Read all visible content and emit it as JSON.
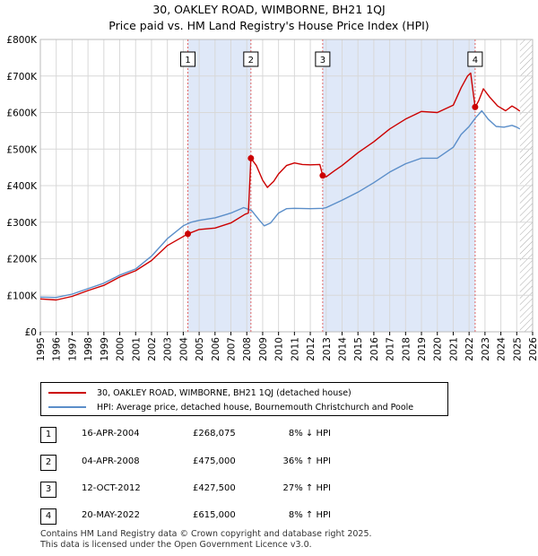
{
  "title": "30, OAKLEY ROAD, WIMBORNE, BH21 1QJ",
  "subtitle": "Price paid vs. HM Land Registry's House Price Index (HPI)",
  "colors": {
    "property": "#cc0000",
    "hpi": "#5b8ec9",
    "shade": "#dfe8f8",
    "hatch": "#aaaaaa"
  },
  "chart_data": {
    "type": "line",
    "title": "30, OAKLEY ROAD, WIMBORNE, BH21 1QJ",
    "xlim": [
      1995,
      2026
    ],
    "ylim": [
      0,
      800000
    ],
    "y_ticks": [
      {
        "value": 0,
        "label": "£0"
      },
      {
        "value": 100000,
        "label": "£100K"
      },
      {
        "value": 200000,
        "label": "£200K"
      },
      {
        "value": 300000,
        "label": "£300K"
      },
      {
        "value": 400000,
        "label": "£400K"
      },
      {
        "value": 500000,
        "label": "£500K"
      },
      {
        "value": 600000,
        "label": "£600K"
      },
      {
        "value": 700000,
        "label": "£700K"
      },
      {
        "value": 800000,
        "label": "£800K"
      }
    ],
    "x_ticks": [
      "1995",
      "1996",
      "1997",
      "1998",
      "1999",
      "2000",
      "2001",
      "2002",
      "2003",
      "2004",
      "2005",
      "2006",
      "2007",
      "2008",
      "2009",
      "2010",
      "2011",
      "2012",
      "2013",
      "2014",
      "2015",
      "2016",
      "2017",
      "2018",
      "2019",
      "2020",
      "2021",
      "2022",
      "2023",
      "2024",
      "2025",
      "2026"
    ],
    "series": [
      {
        "name": "30, OAKLEY ROAD, WIMBORNE, BH21 1QJ (detached house)",
        "color": "#cc0000",
        "points": [
          [
            1995,
            90000
          ],
          [
            1996,
            87000
          ],
          [
            1997,
            97000
          ],
          [
            1998,
            113000
          ],
          [
            1999,
            127000
          ],
          [
            2000,
            150000
          ],
          [
            2001,
            167000
          ],
          [
            2002,
            195000
          ],
          [
            2003,
            236000
          ],
          [
            2004.29,
            268075
          ],
          [
            2005,
            280000
          ],
          [
            2006,
            284000
          ],
          [
            2007,
            298000
          ],
          [
            2007.9,
            322000
          ],
          [
            2008.1,
            325000
          ],
          [
            2008.26,
            475000
          ],
          [
            2008.6,
            455000
          ],
          [
            2009.0,
            415000
          ],
          [
            2009.3,
            395000
          ],
          [
            2009.7,
            412000
          ],
          [
            2010,
            432000
          ],
          [
            2010.5,
            455000
          ],
          [
            2011,
            462000
          ],
          [
            2011.5,
            458000
          ],
          [
            2012,
            457000
          ],
          [
            2012.6,
            458000
          ],
          [
            2012.78,
            427500
          ],
          [
            2013,
            424000
          ],
          [
            2013.5,
            440000
          ],
          [
            2014,
            455000
          ],
          [
            2015,
            490000
          ],
          [
            2016,
            520000
          ],
          [
            2017,
            555000
          ],
          [
            2018,
            582000
          ],
          [
            2019,
            603000
          ],
          [
            2020,
            600000
          ],
          [
            2021,
            620000
          ],
          [
            2021.5,
            668000
          ],
          [
            2021.9,
            700000
          ],
          [
            2022.1,
            708000
          ],
          [
            2022.3,
            640000
          ],
          [
            2022.38,
            615000
          ],
          [
            2022.6,
            632000
          ],
          [
            2022.9,
            665000
          ],
          [
            2023.3,
            642000
          ],
          [
            2023.8,
            618000
          ],
          [
            2024.3,
            605000
          ],
          [
            2024.7,
            618000
          ],
          [
            2025.0,
            610000
          ],
          [
            2025.2,
            604000
          ]
        ]
      },
      {
        "name": "HPI: Average price, detached house, Bournemouth Christchurch and Poole",
        "color": "#5b8ec9",
        "points": [
          [
            1995,
            95000
          ],
          [
            1996,
            94000
          ],
          [
            1997,
            103000
          ],
          [
            1998,
            118000
          ],
          [
            1999,
            133000
          ],
          [
            2000,
            155000
          ],
          [
            2001,
            172000
          ],
          [
            2002,
            207000
          ],
          [
            2003,
            255000
          ],
          [
            2004,
            290000
          ],
          [
            2004.5,
            300000
          ],
          [
            2005,
            305000
          ],
          [
            2006,
            312000
          ],
          [
            2007,
            325000
          ],
          [
            2007.8,
            340000
          ],
          [
            2008.3,
            332000
          ],
          [
            2008.8,
            305000
          ],
          [
            2009.1,
            290000
          ],
          [
            2009.5,
            298000
          ],
          [
            2010,
            325000
          ],
          [
            2010.5,
            337000
          ],
          [
            2011,
            338000
          ],
          [
            2012,
            337000
          ],
          [
            2012.8,
            338000
          ],
          [
            2013,
            340000
          ],
          [
            2014,
            360000
          ],
          [
            2015,
            382000
          ],
          [
            2016,
            408000
          ],
          [
            2017,
            437000
          ],
          [
            2018,
            460000
          ],
          [
            2019,
            475000
          ],
          [
            2020,
            475000
          ],
          [
            2021,
            505000
          ],
          [
            2021.5,
            540000
          ],
          [
            2022,
            562000
          ],
          [
            2022.4,
            585000
          ],
          [
            2022.8,
            605000
          ],
          [
            2023.2,
            582000
          ],
          [
            2023.7,
            562000
          ],
          [
            2024.2,
            560000
          ],
          [
            2024.7,
            565000
          ],
          [
            2025.0,
            560000
          ],
          [
            2025.2,
            555000
          ]
        ]
      }
    ],
    "sales": [
      {
        "label": "1",
        "year": 2004.29,
        "price": 268075
      },
      {
        "label": "2",
        "year": 2008.26,
        "price": 475000
      },
      {
        "label": "3",
        "year": 2012.78,
        "price": 427500
      },
      {
        "label": "4",
        "year": 2022.38,
        "price": 615000
      }
    ],
    "shaded_ranges": [
      [
        2004.29,
        2008.26
      ],
      [
        2012.78,
        2022.38
      ]
    ],
    "future_hatch_from": 2025.2
  },
  "legend": {
    "property": "30, OAKLEY ROAD, WIMBORNE, BH21 1QJ (detached house)",
    "hpi": "HPI: Average price, detached house, Bournemouth Christchurch and Poole"
  },
  "transactions": [
    {
      "num": "1",
      "date": "16-APR-2004",
      "price": "£268,075",
      "pct": "8% ↓ HPI"
    },
    {
      "num": "2",
      "date": "04-APR-2008",
      "price": "£475,000",
      "pct": "36% ↑ HPI"
    },
    {
      "num": "3",
      "date": "12-OCT-2012",
      "price": "£427,500",
      "pct": "27% ↑ HPI"
    },
    {
      "num": "4",
      "date": "20-MAY-2022",
      "price": "£615,000",
      "pct": "8% ↑ HPI"
    }
  ],
  "footer": {
    "line1": "Contains HM Land Registry data © Crown copyright and database right 2025.",
    "line2": "This data is licensed under the Open Government Licence v3.0."
  }
}
